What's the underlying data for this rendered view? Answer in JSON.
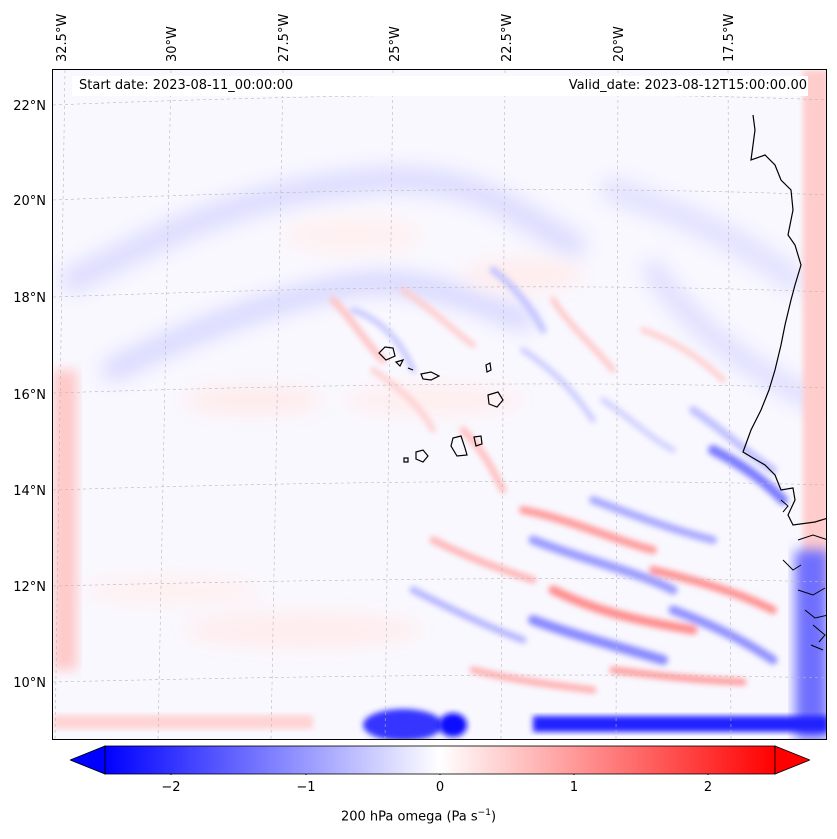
{
  "map": {
    "start_date": "Start date: 2023-08-11_00:00:00",
    "valid_date": "Valid_date: 2023-08-12T15:00:00.00",
    "lon_labels": [
      "32.5°W",
      "30°W",
      "27.5°W",
      "25°W",
      "22.5°W",
      "20°W",
      "17.5°W"
    ],
    "lat_labels": [
      "22°N",
      "20°N",
      "18°N",
      "16°N",
      "14°N",
      "12°N",
      "10°N"
    ],
    "colormap": {
      "negative": "#0000ff",
      "zero": "#ffffff",
      "positive": "#ff0000"
    }
  },
  "colorbar": {
    "ticks": [
      "−2",
      "−1",
      "0",
      "1",
      "2"
    ],
    "label_main": "200 hPa omega (Pa s",
    "label_sup": "−1",
    "label_end": ")",
    "range": [
      -2.75,
      2.75
    ]
  }
}
